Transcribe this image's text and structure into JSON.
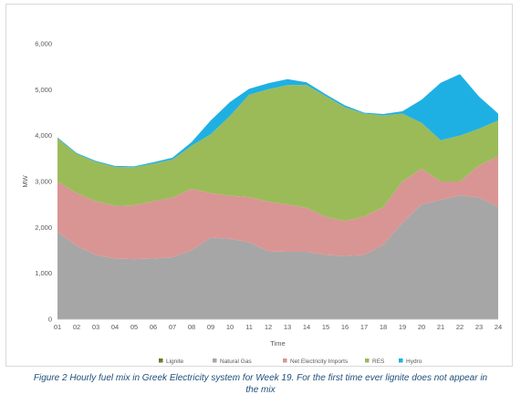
{
  "chart_data": {
    "type": "area",
    "stacked": true,
    "xlabel": "Time",
    "ylabel": "MW",
    "ylim": [
      0,
      6000
    ],
    "yticks": [
      "0",
      "1,000",
      "2,000",
      "3,000",
      "4,000",
      "5,000",
      "6,000"
    ],
    "ytick_values": [
      0,
      1000,
      2000,
      3000,
      4000,
      5000,
      6000
    ],
    "categories": [
      "01",
      "02",
      "03",
      "04",
      "05",
      "06",
      "07",
      "08",
      "09",
      "10",
      "11",
      "12",
      "13",
      "14",
      "15",
      "16",
      "17",
      "18",
      "19",
      "20",
      "21",
      "22",
      "23",
      "24"
    ],
    "grid": false,
    "legend_position": "bottom",
    "series": [
      {
        "name": "Lignite",
        "color": "#6b7a2a",
        "values": [
          0,
          0,
          0,
          0,
          0,
          0,
          0,
          0,
          0,
          0,
          0,
          0,
          0,
          0,
          0,
          0,
          0,
          0,
          0,
          0,
          0,
          0,
          0,
          0
        ]
      },
      {
        "name": "Natural Gas",
        "color": "#a6a6a6",
        "values": [
          1900,
          1600,
          1400,
          1320,
          1310,
          1320,
          1350,
          1500,
          1780,
          1750,
          1680,
          1480,
          1470,
          1470,
          1400,
          1380,
          1400,
          1620,
          2100,
          2500,
          2600,
          2700,
          2650,
          2450
        ]
      },
      {
        "name": "Net Electricity Imports",
        "color": "#d99594",
        "values": [
          1100,
          1150,
          1170,
          1150,
          1170,
          1250,
          1300,
          1340,
          970,
          940,
          980,
          1080,
          1030,
          960,
          830,
          760,
          840,
          820,
          900,
          780,
          400,
          300,
          700,
          1100
        ]
      },
      {
        "name": "RES",
        "color": "#9bbb59",
        "values": [
          940,
          850,
          860,
          850,
          830,
          820,
          830,
          940,
          1280,
          1740,
          2230,
          2450,
          2600,
          2670,
          2630,
          2480,
          2240,
          2000,
          1480,
          1000,
          900,
          1000,
          800,
          780
        ]
      },
      {
        "name": "Hydro",
        "color": "#1fb0e3",
        "values": [
          20,
          20,
          20,
          20,
          20,
          30,
          40,
          80,
          300,
          300,
          130,
          130,
          130,
          60,
          40,
          40,
          20,
          30,
          50,
          500,
          1250,
          1340,
          700,
          150
        ]
      }
    ]
  },
  "caption_lines": [
    "Figure 2 Hourly fuel mix in Greek Electricity system for Week 19. For the first time ever lignite does not appear in",
    "the mix"
  ]
}
